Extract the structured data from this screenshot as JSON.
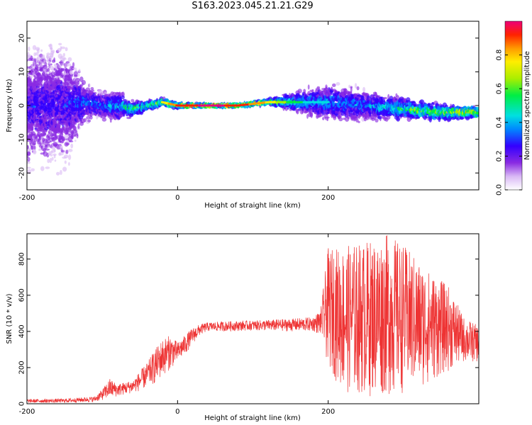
{
  "title": "S163.2023.045.21.21.G29",
  "chart_data": [
    {
      "type": "heatmap",
      "xlabel": "Height of straight line (km)",
      "ylabel": "Frequency (Hz)",
      "xlim": [
        -200,
        400
      ],
      "ylim": [
        -25,
        25
      ],
      "xticks": [
        "-200",
        "0",
        "200"
      ],
      "yticks": [
        "-20",
        "-10",
        "0",
        "10",
        "20"
      ],
      "colorbar": {
        "label": "Normalized spectral amplitude",
        "range": [
          0,
          1
        ],
        "ticks": [
          "0.0",
          "0.2",
          "0.4",
          "0.6",
          "0.8"
        ]
      },
      "ridge": {
        "x": [
          -200,
          -150,
          -120,
          -100,
          -80,
          -60,
          -40,
          -20,
          0,
          40,
          80,
          120,
          160,
          200,
          250,
          300,
          350,
          400
        ],
        "center_hz": [
          0,
          0,
          1,
          0,
          0,
          -1,
          0,
          1,
          0,
          0,
          0,
          1,
          1,
          1,
          0,
          -1,
          -2,
          -2
        ],
        "spread_hz": [
          22,
          22,
          6,
          5,
          6,
          3,
          2,
          1.5,
          1,
          0.6,
          0.6,
          1,
          4,
          7,
          6,
          4,
          3,
          2
        ],
        "intensity": [
          0.25,
          0.25,
          0.35,
          0.35,
          0.4,
          0.55,
          0.6,
          0.7,
          0.85,
          0.95,
          0.9,
          0.75,
          0.45,
          0.4,
          0.35,
          0.55,
          0.7,
          0.85
        ]
      }
    },
    {
      "type": "line",
      "xlabel": "Height of straight line (km)",
      "ylabel": "SNR (10 * v/v)",
      "xlim": [
        -200,
        400
      ],
      "ylim": [
        0,
        940
      ],
      "xticks": [
        "-200",
        "0",
        "200"
      ],
      "yticks": [
        "0",
        "200",
        "400",
        "600",
        "800"
      ],
      "series": [
        {
          "color": "#ee3333",
          "envelope_x": [
            -200,
            -150,
            -110,
            -100,
            -90,
            -80,
            -60,
            -50,
            -40,
            -30,
            -20,
            -10,
            0,
            10,
            20,
            30,
            40,
            60,
            100,
            150,
            180,
            190,
            200,
            220,
            250,
            280,
            300,
            330,
            360,
            380,
            400
          ],
          "envelope_low": [
            5,
            5,
            10,
            20,
            30,
            40,
            60,
            70,
            90,
            110,
            150,
            190,
            230,
            270,
            330,
            380,
            400,
            400,
            405,
            400,
            400,
            380,
            200,
            60,
            40,
            40,
            60,
            100,
            180,
            230,
            230
          ],
          "envelope_high": [
            25,
            28,
            40,
            80,
            140,
            110,
            130,
            180,
            230,
            300,
            360,
            380,
            340,
            380,
            420,
            440,
            450,
            455,
            460,
            470,
            480,
            520,
            860,
            870,
            900,
            940,
            880,
            750,
            650,
            480,
            430
          ]
        }
      ]
    }
  ]
}
